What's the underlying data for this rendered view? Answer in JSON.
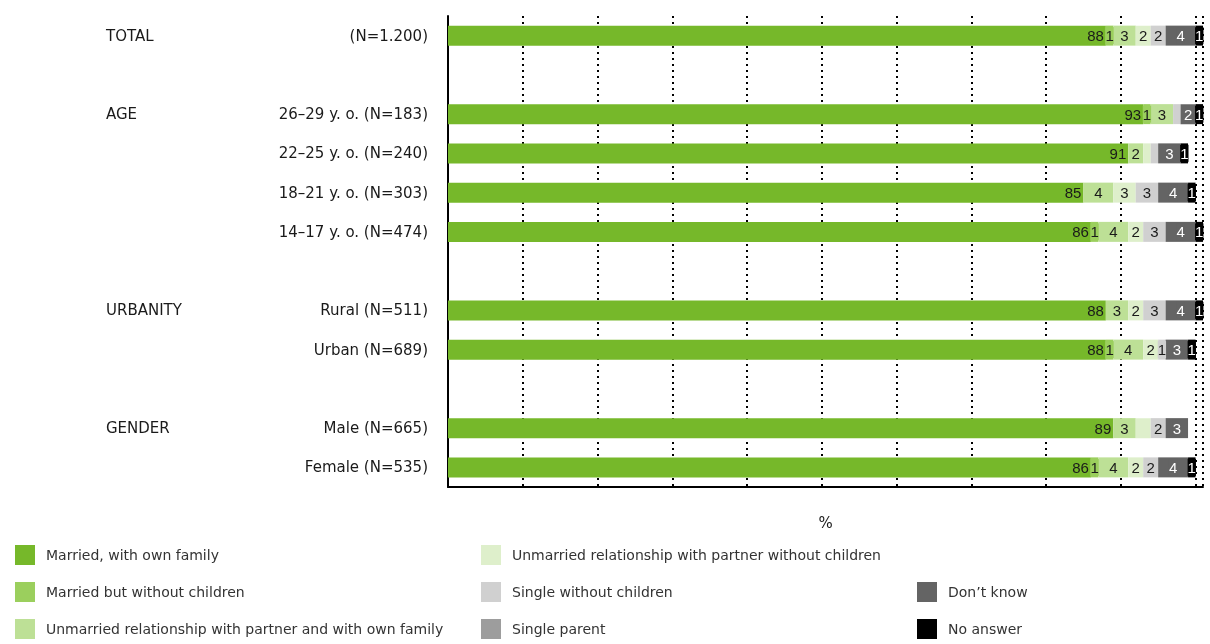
{
  "chart_data": {
    "type": "bar",
    "orientation": "horizontal",
    "stacked": true,
    "xlabel": "%",
    "categories": [
      "(N=1.200)",
      null,
      "26–29 y. o. (N=183)",
      "22–25 y. o. (N=240)",
      "18–21 y. o. (N=303)",
      "14–17 y. o. (N=474)",
      null,
      "Rural (N=511)",
      "Urban (N=689)",
      null,
      "Male (N=665)",
      "Female (N=535)"
    ],
    "annotations": [
      "TOTAL",
      "AGE",
      "URBANITY",
      "GENDER"
    ],
    "xlim": [
      0,
      101
    ],
    "xticks": [
      {
        "value": 0,
        "label": null
      },
      {
        "value": 10,
        "label": null
      },
      {
        "value": 20,
        "label": null
      },
      {
        "value": 30,
        "label": null
      },
      {
        "value": 40,
        "label": null
      },
      {
        "value": 50,
        "label": null
      },
      {
        "value": 60,
        "label": null
      },
      {
        "value": 70,
        "label": null
      },
      {
        "value": 80,
        "label": null
      },
      {
        "value": 90,
        "label": null
      },
      {
        "value": 100,
        "label": null
      }
    ],
    "tick_labels": "y",
    "grid": "x",
    "legend": "bottom",
    "series": [
      {
        "name": "Married, with own family",
        "color": "#76b82a",
        "values": [
          88,
          null,
          93,
          91,
          85,
          86,
          null,
          88,
          88,
          null,
          89,
          86
        ],
        "value_labels": [
          "88",
          null,
          "93",
          "91",
          "85",
          "86",
          null,
          "88",
          "88",
          null,
          "89",
          "86"
        ]
      },
      {
        "name": "Married but without children",
        "color": "#9bcf5d",
        "values": [
          1,
          null,
          1,
          null,
          null,
          1,
          null,
          null,
          1,
          null,
          null,
          1
        ],
        "value_labels": [
          "1",
          null,
          "1",
          null,
          null,
          "1",
          null,
          null,
          "1",
          null,
          null,
          "1"
        ]
      },
      {
        "name": "Unmarried relationship with partner and with own family",
        "color": "#bde096",
        "values": [
          3,
          null,
          3,
          2,
          4,
          4,
          null,
          3,
          4,
          null,
          3,
          4
        ],
        "value_labels": [
          "3",
          null,
          "3",
          "2",
          "4",
          "4",
          null,
          "3",
          "4",
          null,
          "3",
          "4"
        ]
      },
      {
        "name": "Unmarried relationship with partner without children",
        "color": "#deefcb",
        "values": [
          2,
          null,
          null,
          1,
          3,
          2,
          null,
          2,
          2,
          null,
          2,
          2
        ],
        "value_labels": [
          "2",
          null,
          null,
          null,
          "3",
          "2",
          null,
          "2",
          "2",
          null,
          null,
          "2"
        ]
      },
      {
        "name": "Single without children",
        "color": "#d0d0d0",
        "values": [
          2,
          null,
          1,
          1,
          3,
          3,
          null,
          3,
          1,
          null,
          2,
          2
        ],
        "value_labels": [
          "2",
          null,
          null,
          null,
          "3",
          "3",
          null,
          "3",
          "1",
          null,
          "2",
          "2"
        ]
      },
      {
        "name": "Single parent",
        "color": "#9d9d9d",
        "values": [
          null,
          null,
          null,
          null,
          null,
          null,
          null,
          null,
          null,
          null,
          null,
          null
        ]
      },
      {
        "name": "Don’t know",
        "color": "#646464",
        "values": [
          4,
          null,
          2,
          3,
          4,
          4,
          null,
          4,
          3,
          null,
          3,
          4
        ],
        "value_labels": [
          "4",
          null,
          "2",
          "3",
          "4",
          "4",
          null,
          "4",
          "3",
          null,
          "3",
          "4"
        ]
      },
      {
        "name": "No answer",
        "color": "#000000",
        "values": [
          1,
          null,
          1,
          1,
          1,
          1,
          null,
          1,
          1,
          null,
          null,
          1
        ],
        "value_labels": [
          "1",
          null,
          "1",
          "1",
          "1",
          "1",
          null,
          "1",
          "1",
          null,
          null,
          "1"
        ]
      }
    ]
  }
}
